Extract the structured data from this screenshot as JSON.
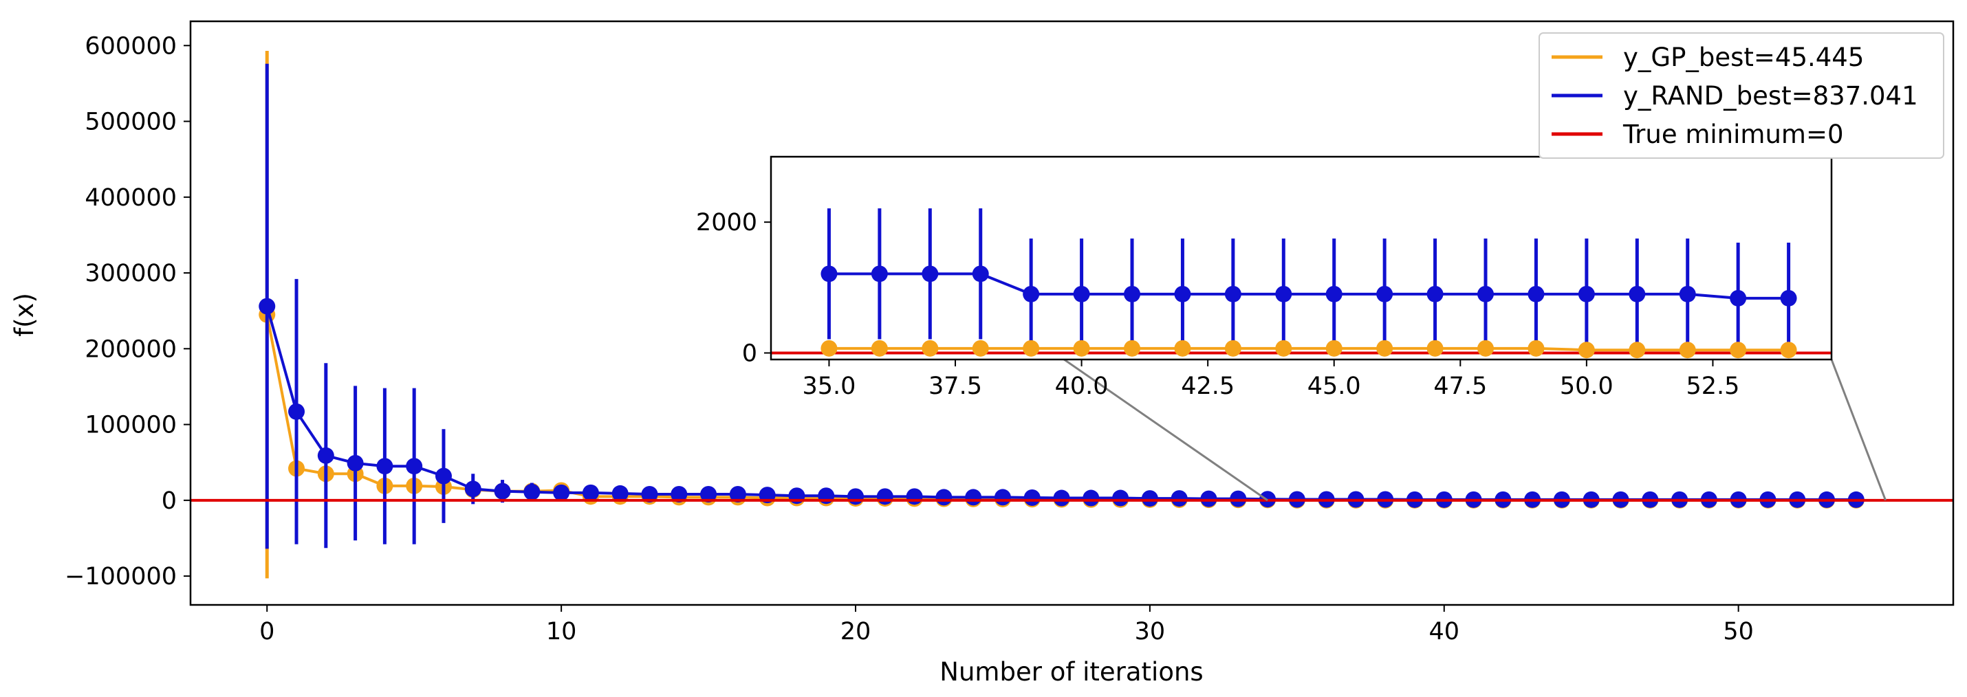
{
  "chart_data": {
    "type": "line",
    "xlabel": "Number of iterations",
    "ylabel": "f(x)",
    "xlim": [
      -2.6,
      57.3
    ],
    "ylim": [
      -138000,
      632000
    ],
    "xticks": [
      0,
      10,
      20,
      30,
      40,
      50
    ],
    "yticks": [
      -100000,
      0,
      100000,
      200000,
      300000,
      400000,
      500000,
      600000
    ],
    "ytick_labels": [
      "−100000",
      "0",
      "100000",
      "200000",
      "300000",
      "400000",
      "500000",
      "600000"
    ],
    "legend_position": "upper right",
    "series": [
      {
        "name": "y_GP_best=45.445",
        "color": "#f5a31a",
        "x": [
          0,
          1,
          2,
          3,
          4,
          5,
          6,
          7,
          8,
          9,
          10,
          11,
          12,
          13,
          14,
          15,
          16,
          17,
          18,
          19,
          20,
          21,
          22,
          23,
          24,
          25,
          26,
          27,
          28,
          29,
          30,
          31,
          32,
          33,
          34,
          35,
          36,
          37,
          38,
          39,
          40,
          41,
          42,
          43,
          44,
          45,
          46,
          47,
          48,
          49,
          50,
          51,
          52,
          53,
          54
        ],
        "y": [
          245000,
          42000,
          35000,
          35000,
          19000,
          19000,
          18000,
          14000,
          12000,
          12000,
          13000,
          5000,
          5000,
          5000,
          4000,
          4000,
          4000,
          3000,
          3000,
          3000,
          2500,
          2500,
          2200,
          2000,
          1800,
          1600,
          1400,
          1200,
          1000,
          900,
          800,
          700,
          600,
          500,
          400,
          70,
          70,
          70,
          70,
          70,
          70,
          70,
          70,
          70,
          70,
          70,
          70,
          70,
          70,
          70,
          45,
          45,
          45,
          45,
          45
        ],
        "err": [
          348000,
          0,
          0,
          0,
          0,
          0,
          0,
          0,
          0,
          0,
          0,
          0,
          0,
          0,
          0,
          0,
          0,
          0,
          0,
          0,
          0,
          0,
          0,
          0,
          0,
          0,
          0,
          0,
          0,
          0,
          0,
          0,
          0,
          0,
          0,
          0,
          0,
          0,
          0,
          0,
          0,
          0,
          0,
          0,
          0,
          0,
          0,
          0,
          0,
          0,
          0,
          0,
          0,
          0,
          0
        ]
      },
      {
        "name": "y_RAND_best=837.041",
        "color": "#1010d0",
        "x": [
          0,
          1,
          2,
          3,
          4,
          5,
          6,
          7,
          8,
          9,
          10,
          11,
          12,
          13,
          14,
          15,
          16,
          17,
          18,
          19,
          20,
          21,
          22,
          23,
          24,
          25,
          26,
          27,
          28,
          29,
          30,
          31,
          32,
          33,
          34,
          35,
          36,
          37,
          38,
          39,
          40,
          41,
          42,
          43,
          44,
          45,
          46,
          47,
          48,
          49,
          50,
          51,
          52,
          53,
          54
        ],
        "y": [
          256000,
          117000,
          59000,
          49000,
          45000,
          45000,
          32000,
          15000,
          12000,
          11000,
          10000,
          10000,
          9000,
          8000,
          8000,
          8000,
          8000,
          7000,
          6000,
          6000,
          5000,
          5000,
          5000,
          4000,
          4000,
          4000,
          3500,
          3000,
          3000,
          3000,
          2500,
          2500,
          2000,
          2000,
          1500,
          1210,
          1210,
          1210,
          1210,
          900,
          900,
          900,
          900,
          900,
          900,
          900,
          900,
          900,
          900,
          900,
          900,
          900,
          900,
          837,
          837
        ],
        "err": [
          320000,
          175000,
          122000,
          102000,
          103000,
          103000,
          62000,
          20000,
          15000,
          12000,
          10000,
          8000,
          6000,
          5000,
          4500,
          4000,
          4000,
          3500,
          3000,
          3000,
          3000,
          2500,
          2500,
          2500,
          2500,
          2000,
          2000,
          2000,
          2000,
          2000,
          1500,
          1500,
          1500,
          1500,
          1500,
          1000,
          1000,
          1000,
          1000,
          850,
          850,
          850,
          850,
          850,
          850,
          850,
          850,
          850,
          850,
          850,
          850,
          850,
          850,
          850,
          850
        ]
      },
      {
        "name": "True minimum=0",
        "color": "#e00000",
        "hline": 0
      }
    ],
    "inset": {
      "xlim": [
        33.85,
        54.85
      ],
      "ylim": [
        -100,
        3000
      ],
      "xticks": [
        35.0,
        37.5,
        40.0,
        42.5,
        45.0,
        47.5,
        50.0,
        52.5
      ],
      "xtick_labels": [
        "35.0",
        "37.5",
        "40.0",
        "42.5",
        "45.0",
        "47.5",
        "50.0",
        "52.5"
      ],
      "yticks": [
        0,
        2000
      ],
      "ytick_labels": [
        "0",
        "2000"
      ],
      "x_from": 35,
      "gp_y": [
        70,
        70,
        70,
        70,
        70,
        70,
        70,
        70,
        70,
        70,
        70,
        70,
        70,
        70,
        70,
        45,
        45,
        45,
        45,
        45
      ],
      "rand_y": [
        1210,
        1210,
        1210,
        1210,
        900,
        900,
        900,
        900,
        900,
        900,
        900,
        900,
        900,
        900,
        900,
        900,
        900,
        900,
        837,
        837
      ],
      "rand_err": [
        1000,
        1000,
        1000,
        1000,
        850,
        850,
        850,
        850,
        850,
        850,
        850,
        850,
        850,
        850,
        850,
        850,
        850,
        850,
        850,
        850
      ]
    }
  }
}
